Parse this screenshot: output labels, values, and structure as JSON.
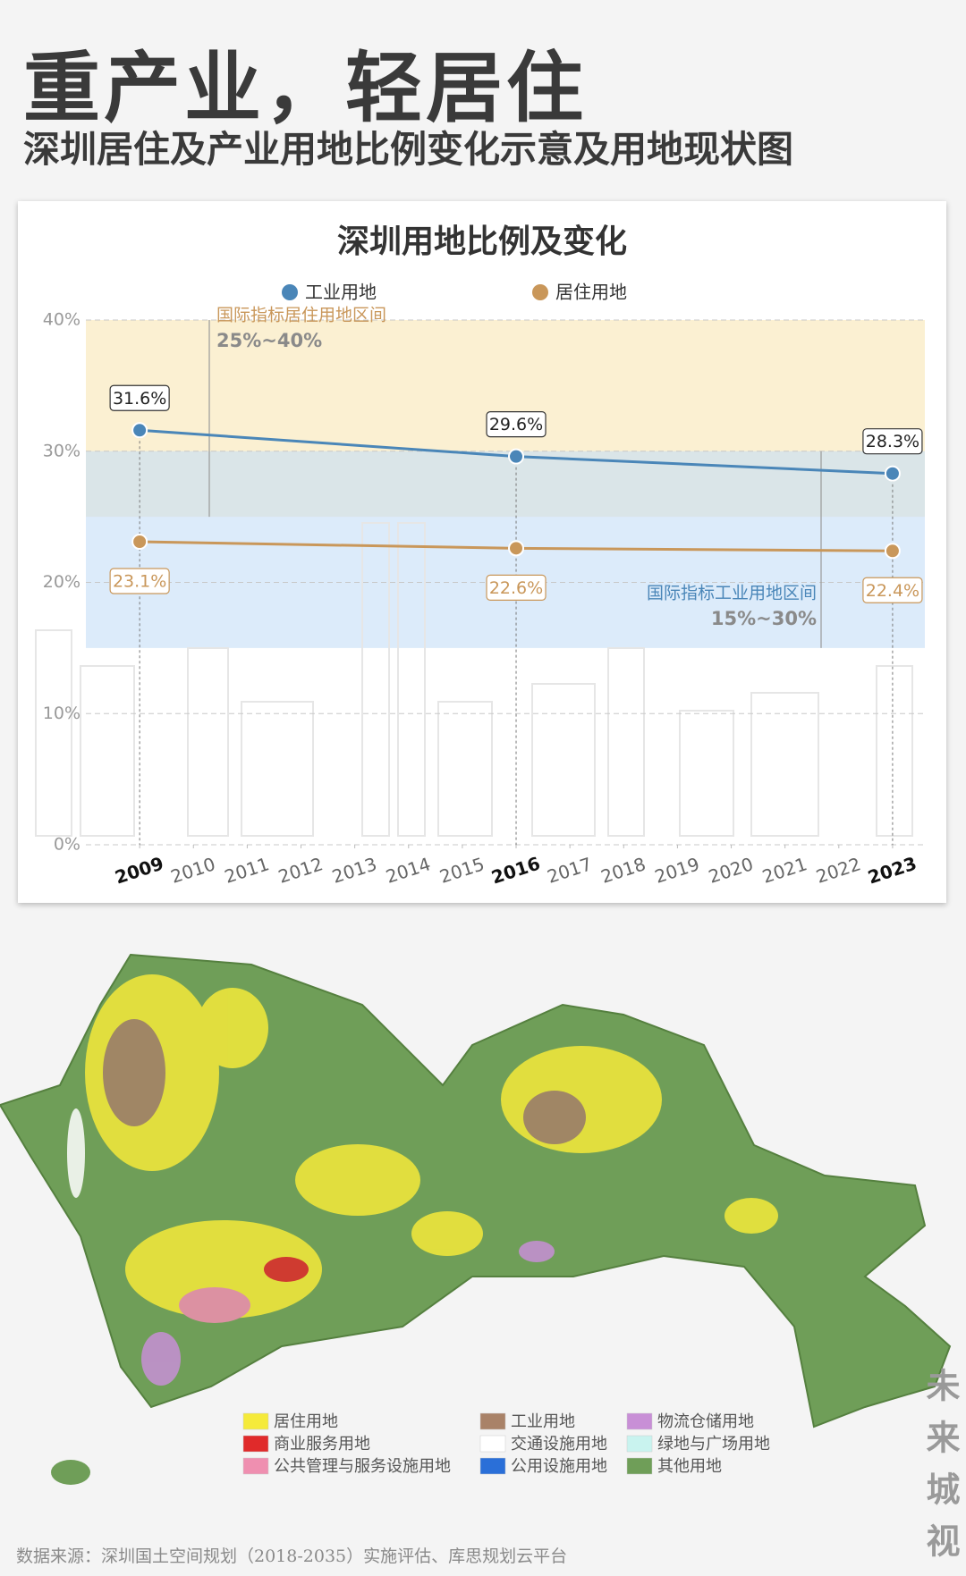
{
  "header": {
    "title": "重产业，轻居住",
    "subtitle": "深圳居住及产业用地比例变化示意及用地现状图"
  },
  "chart_data": {
    "type": "line",
    "title": "深圳用地比例及变化",
    "x": [
      2009,
      2016,
      2023
    ],
    "xlim": [
      2008,
      2023.6
    ],
    "xticks": [
      2009,
      2010,
      2011,
      2012,
      2013,
      2014,
      2015,
      2016,
      2017,
      2018,
      2019,
      2020,
      2021,
      2022,
      2023
    ],
    "ylim": [
      0,
      40
    ],
    "yticks": [
      {
        "value": 0,
        "label": "0%"
      },
      {
        "value": 10,
        "label": "10%"
      },
      {
        "value": 20,
        "label": "20%"
      },
      {
        "value": 30,
        "label": "30%"
      },
      {
        "value": 40,
        "label": "40%"
      }
    ],
    "grid": true,
    "series": [
      {
        "name": "工业用地",
        "color": "#4a86b8",
        "values": [
          31.6,
          29.6,
          28.3
        ],
        "value_labels": [
          "31.6%",
          "29.6%",
          "28.3%"
        ],
        "label_position": "above"
      },
      {
        "name": "居住用地",
        "color": "#c9975a",
        "values": [
          23.1,
          22.6,
          22.4
        ],
        "value_labels": [
          "23.1%",
          "22.6%",
          "22.4%"
        ],
        "label_position": "below"
      }
    ],
    "bands": [
      {
        "name": "国际指标居住用地区间",
        "range_label": "25%~40%",
        "from": 25,
        "to": 40,
        "color": "#f8e6b4"
      },
      {
        "name": "国际指标工业用地区间",
        "range_label": "15%~30%",
        "from": 15,
        "to": 30,
        "color": "#c5def6"
      }
    ]
  },
  "map": {
    "legend": [
      {
        "label": "居住用地",
        "color": "#f5ea3a"
      },
      {
        "label": "商业服务用地",
        "color": "#e02a2a"
      },
      {
        "label": "公共管理与服务设施用地",
        "color": "#ef8fb0"
      },
      {
        "label": "工业用地",
        "color": "#a98268"
      },
      {
        "label": "交通设施用地",
        "color": "#ffffff"
      },
      {
        "label": "公用设施用地",
        "color": "#2a6fd8"
      },
      {
        "label": "物流仓储用地",
        "color": "#c88fd6"
      },
      {
        "label": "绿地与广场用地",
        "color": "#c9f3ef"
      },
      {
        "label": "其他用地",
        "color": "#6f9e58"
      }
    ]
  },
  "source": "数据来源：深圳国土空间规划（2018-2035）实施评估、库思规划云平台",
  "watermark": "未来城视"
}
